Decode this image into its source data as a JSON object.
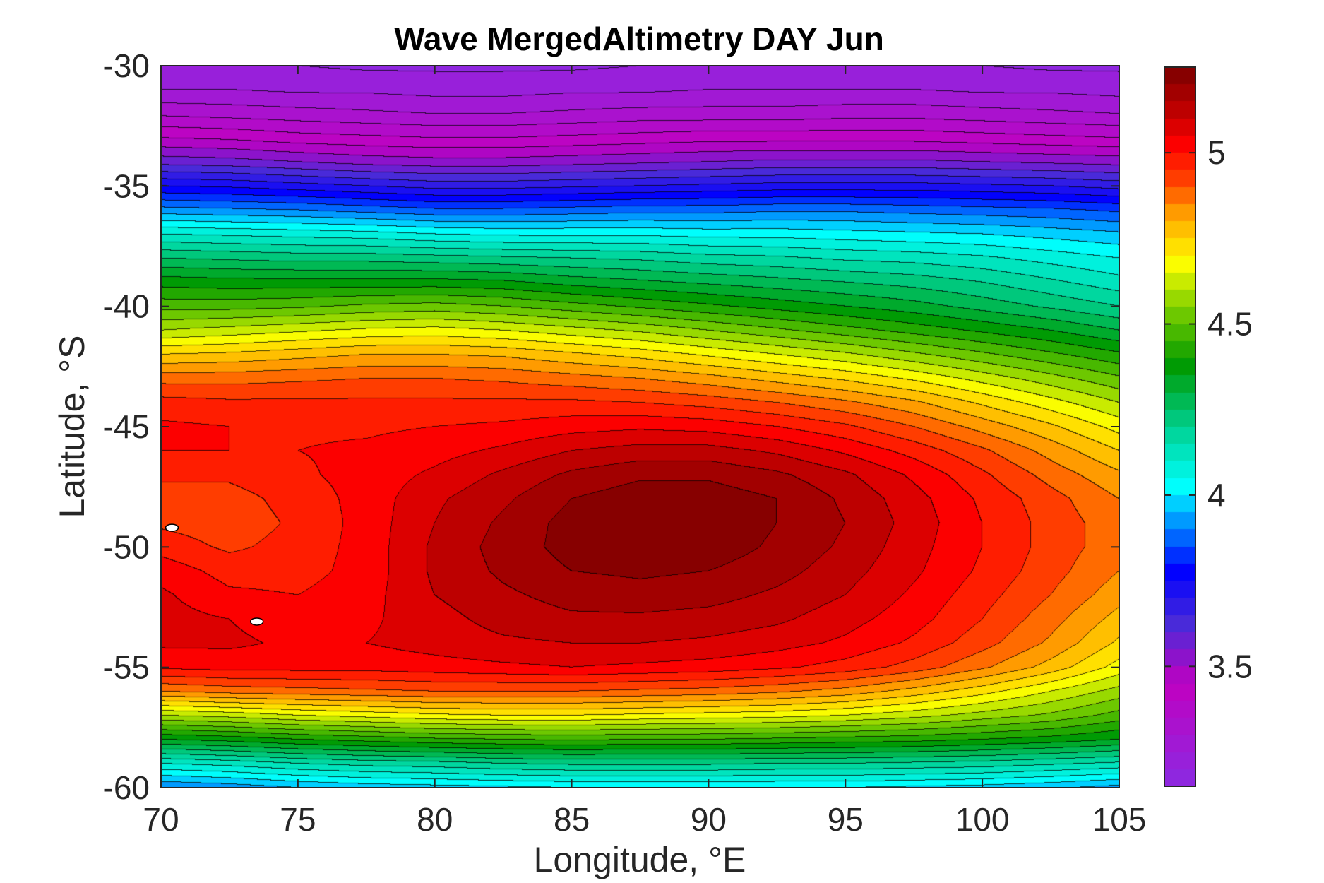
{
  "chart_data": {
    "type": "heatmap",
    "subtype": "filled-contour",
    "title": "Wave MergedAltimetry DAY Jun",
    "xlabel": "Longitude, °E",
    "ylabel": "Latitude, °S",
    "xlim": [
      70,
      105
    ],
    "ylim": [
      -60,
      -30
    ],
    "x_ticks": [
      70,
      75,
      80,
      85,
      90,
      95,
      100,
      105
    ],
    "y_ticks": [
      -60,
      -55,
      -50,
      -45,
      -40,
      -35,
      -30
    ],
    "x_tick_labels": [
      "70",
      "75",
      "80",
      "85",
      "90",
      "95",
      "100",
      "105"
    ],
    "y_tick_labels": [
      "-60",
      "-55",
      "-50",
      "-45",
      "-40",
      "-35",
      "-30"
    ],
    "colorbar": {
      "range": [
        3.15,
        5.25
      ],
      "ticks": [
        3.5,
        4,
        4.5,
        5
      ],
      "tick_labels": [
        "3.5",
        "4",
        "4.5",
        "5"
      ],
      "colormap_stops": [
        {
          "v": 3.15,
          "color": "#8a2be2"
        },
        {
          "v": 3.45,
          "color": "#c000c0"
        },
        {
          "v": 3.62,
          "color": "#4b2bd8"
        },
        {
          "v": 3.78,
          "color": "#0000ff"
        },
        {
          "v": 3.9,
          "color": "#0080ff"
        },
        {
          "v": 4.02,
          "color": "#00ffff"
        },
        {
          "v": 4.2,
          "color": "#00d090"
        },
        {
          "v": 4.38,
          "color": "#009a00"
        },
        {
          "v": 4.55,
          "color": "#80d000"
        },
        {
          "v": 4.68,
          "color": "#ffff00"
        },
        {
          "v": 4.82,
          "color": "#ffa000"
        },
        {
          "v": 4.92,
          "color": "#ff4000"
        },
        {
          "v": 5.02,
          "color": "#ff0000"
        },
        {
          "v": 5.12,
          "color": "#c00000"
        },
        {
          "v": 5.25,
          "color": "#7a0000"
        }
      ],
      "level_step": 0.05
    },
    "field": {
      "lats": [
        -60,
        -59,
        -58,
        -57,
        -56,
        -55,
        -54,
        -53,
        -52,
        -51,
        -50,
        -49,
        -48,
        -47,
        -46,
        -45,
        -44,
        -43,
        -42,
        -41,
        -40,
        -39,
        -38,
        -37,
        -36,
        -35,
        -34,
        -33,
        -32,
        -31,
        -30
      ],
      "lons": [
        70,
        72.5,
        75,
        77.5,
        80,
        82.5,
        85,
        87.5,
        90,
        92.5,
        95,
        97.5,
        100,
        102.5,
        105
      ],
      "values": [
        [
          3.9,
          3.92,
          3.95,
          3.97,
          3.98,
          3.99,
          4.0,
          4.0,
          4.0,
          4.0,
          4.0,
          3.99,
          3.98,
          3.96,
          3.93
        ],
        [
          4.1,
          4.12,
          4.15,
          4.17,
          4.18,
          4.2,
          4.21,
          4.21,
          4.21,
          4.2,
          4.2,
          4.19,
          4.18,
          4.16,
          4.14
        ],
        [
          4.35,
          4.37,
          4.4,
          4.42,
          4.44,
          4.45,
          4.46,
          4.45,
          4.45,
          4.44,
          4.43,
          4.42,
          4.4,
          4.38,
          4.35
        ],
        [
          4.6,
          4.62,
          4.65,
          4.67,
          4.69,
          4.7,
          4.7,
          4.69,
          4.68,
          4.67,
          4.65,
          4.62,
          4.58,
          4.54,
          4.48
        ],
        [
          4.85,
          4.87,
          4.88,
          4.89,
          4.9,
          4.9,
          4.9,
          4.89,
          4.88,
          4.86,
          4.83,
          4.78,
          4.72,
          4.65,
          4.58
        ],
        [
          5.01,
          5.02,
          5.02,
          5.02,
          5.03,
          5.04,
          5.05,
          5.04,
          5.03,
          5.01,
          4.98,
          4.93,
          4.86,
          4.78,
          4.68
        ],
        [
          5.06,
          5.06,
          5.04,
          5.05,
          5.07,
          5.09,
          5.1,
          5.1,
          5.09,
          5.07,
          5.04,
          4.99,
          4.92,
          4.84,
          4.74
        ],
        [
          5.07,
          5.05,
          5.02,
          5.04,
          5.08,
          5.12,
          5.14,
          5.14,
          5.13,
          5.11,
          5.07,
          5.02,
          4.95,
          4.87,
          4.78
        ],
        [
          5.06,
          5.01,
          5.0,
          5.03,
          5.1,
          5.14,
          5.17,
          5.18,
          5.17,
          5.14,
          5.1,
          5.04,
          4.97,
          4.9,
          4.82
        ],
        [
          5.03,
          4.98,
          4.98,
          5.02,
          5.11,
          5.16,
          5.2,
          5.21,
          5.2,
          5.17,
          5.12,
          5.06,
          4.99,
          4.92,
          4.85
        ],
        [
          4.98,
          4.94,
          4.97,
          5.02,
          5.11,
          5.17,
          5.22,
          5.23,
          5.23,
          5.19,
          5.14,
          5.07,
          5.0,
          4.93,
          4.87
        ],
        [
          4.94,
          4.92,
          4.96,
          5.02,
          5.1,
          5.16,
          5.22,
          5.24,
          5.24,
          5.2,
          5.15,
          5.08,
          5.0,
          4.93,
          4.87
        ],
        [
          4.93,
          4.93,
          4.97,
          5.02,
          5.09,
          5.14,
          5.2,
          5.23,
          5.23,
          5.2,
          5.14,
          5.07,
          4.99,
          4.92,
          4.85
        ],
        [
          4.96,
          4.96,
          4.99,
          5.02,
          5.06,
          5.11,
          5.16,
          5.19,
          5.19,
          5.16,
          5.11,
          5.04,
          4.96,
          4.88,
          4.81
        ],
        [
          5.0,
          5.0,
          5.0,
          5.01,
          5.03,
          5.06,
          5.1,
          5.12,
          5.12,
          5.09,
          5.04,
          4.98,
          4.91,
          4.83,
          4.75
        ],
        [
          5.01,
          5.0,
          4.99,
          4.99,
          5.0,
          5.01,
          5.03,
          5.04,
          5.03,
          5.0,
          4.96,
          4.9,
          4.83,
          4.76,
          4.68
        ],
        [
          4.97,
          4.96,
          4.96,
          4.96,
          4.96,
          4.96,
          4.96,
          4.95,
          4.93,
          4.9,
          4.86,
          4.81,
          4.74,
          4.67,
          4.6
        ],
        [
          4.88,
          4.88,
          4.89,
          4.9,
          4.9,
          4.89,
          4.87,
          4.85,
          4.82,
          4.78,
          4.74,
          4.69,
          4.63,
          4.57,
          4.51
        ],
        [
          4.75,
          4.76,
          4.78,
          4.8,
          4.8,
          4.79,
          4.76,
          4.73,
          4.69,
          4.65,
          4.61,
          4.56,
          4.51,
          4.46,
          4.41
        ],
        [
          4.6,
          4.62,
          4.64,
          4.66,
          4.67,
          4.65,
          4.62,
          4.59,
          4.55,
          4.51,
          4.47,
          4.43,
          4.39,
          4.35,
          4.3
        ],
        [
          4.48,
          4.48,
          4.49,
          4.51,
          4.52,
          4.5,
          4.47,
          4.44,
          4.41,
          4.38,
          4.35,
          4.32,
          4.28,
          4.24,
          4.2
        ],
        [
          4.38,
          4.37,
          4.37,
          4.37,
          4.37,
          4.36,
          4.33,
          4.31,
          4.29,
          4.27,
          4.25,
          4.23,
          4.2,
          4.16,
          4.12
        ],
        [
          4.25,
          4.24,
          4.23,
          4.23,
          4.22,
          4.21,
          4.2,
          4.19,
          4.17,
          4.16,
          4.14,
          4.13,
          4.11,
          4.08,
          4.05
        ],
        [
          4.1,
          4.09,
          4.08,
          4.07,
          4.05,
          4.04,
          4.04,
          4.04,
          4.03,
          4.03,
          4.02,
          4.01,
          4.0,
          3.98,
          3.96
        ],
        [
          3.92,
          3.91,
          3.9,
          3.88,
          3.86,
          3.86,
          3.87,
          3.88,
          3.88,
          3.89,
          3.89,
          3.88,
          3.87,
          3.86,
          3.84
        ],
        [
          3.75,
          3.74,
          3.72,
          3.7,
          3.68,
          3.68,
          3.69,
          3.7,
          3.71,
          3.72,
          3.72,
          3.72,
          3.71,
          3.7,
          3.68
        ],
        [
          3.58,
          3.57,
          3.55,
          3.53,
          3.52,
          3.52,
          3.53,
          3.54,
          3.55,
          3.56,
          3.56,
          3.56,
          3.55,
          3.54,
          3.53
        ],
        [
          3.45,
          3.44,
          3.42,
          3.41,
          3.4,
          3.4,
          3.41,
          3.42,
          3.43,
          3.43,
          3.43,
          3.43,
          3.42,
          3.41,
          3.4
        ],
        [
          3.34,
          3.33,
          3.32,
          3.31,
          3.3,
          3.3,
          3.31,
          3.32,
          3.32,
          3.32,
          3.33,
          3.33,
          3.32,
          3.31,
          3.3
        ],
        [
          3.25,
          3.25,
          3.24,
          3.24,
          3.23,
          3.23,
          3.24,
          3.24,
          3.25,
          3.25,
          3.25,
          3.25,
          3.24,
          3.24,
          3.23
        ],
        [
          3.2,
          3.2,
          3.2,
          3.19,
          3.19,
          3.19,
          3.19,
          3.2,
          3.2,
          3.2,
          3.2,
          3.2,
          3.2,
          3.19,
          3.19
        ]
      ]
    },
    "islands": [
      {
        "lon": 70.4,
        "lat": -49.2
      },
      {
        "lon": 73.5,
        "lat": -53.1
      }
    ],
    "grid": false,
    "legend": "none"
  }
}
